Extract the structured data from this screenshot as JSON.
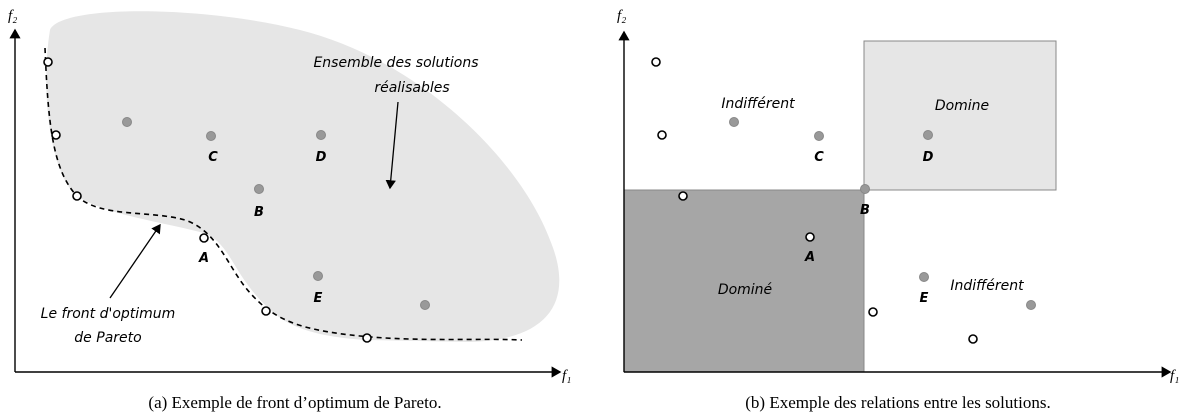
{
  "left": {
    "y_axis": "f₂",
    "x_axis": "f₁",
    "region_label": [
      "Ensemble des solutions",
      "réalisables"
    ],
    "front_label": [
      "Le front d'optimum",
      "de Pareto"
    ],
    "points": {
      "A": "A",
      "B": "B",
      "C": "C",
      "D": "D",
      "E": "E"
    },
    "caption": "(a) Exemple de front d’optimum de Pareto."
  },
  "right": {
    "y_axis": "f₂",
    "x_axis": "f₁",
    "indifferent_top": "Indifférent",
    "dominates": "Domine",
    "dominated": "Dominé",
    "indifferent_bottom": "Indifférent",
    "points": {
      "A": "A",
      "B": "B",
      "C": "C",
      "D": "D",
      "E": "E"
    },
    "caption": "(b) Exemple des relations entre les solutions."
  }
}
